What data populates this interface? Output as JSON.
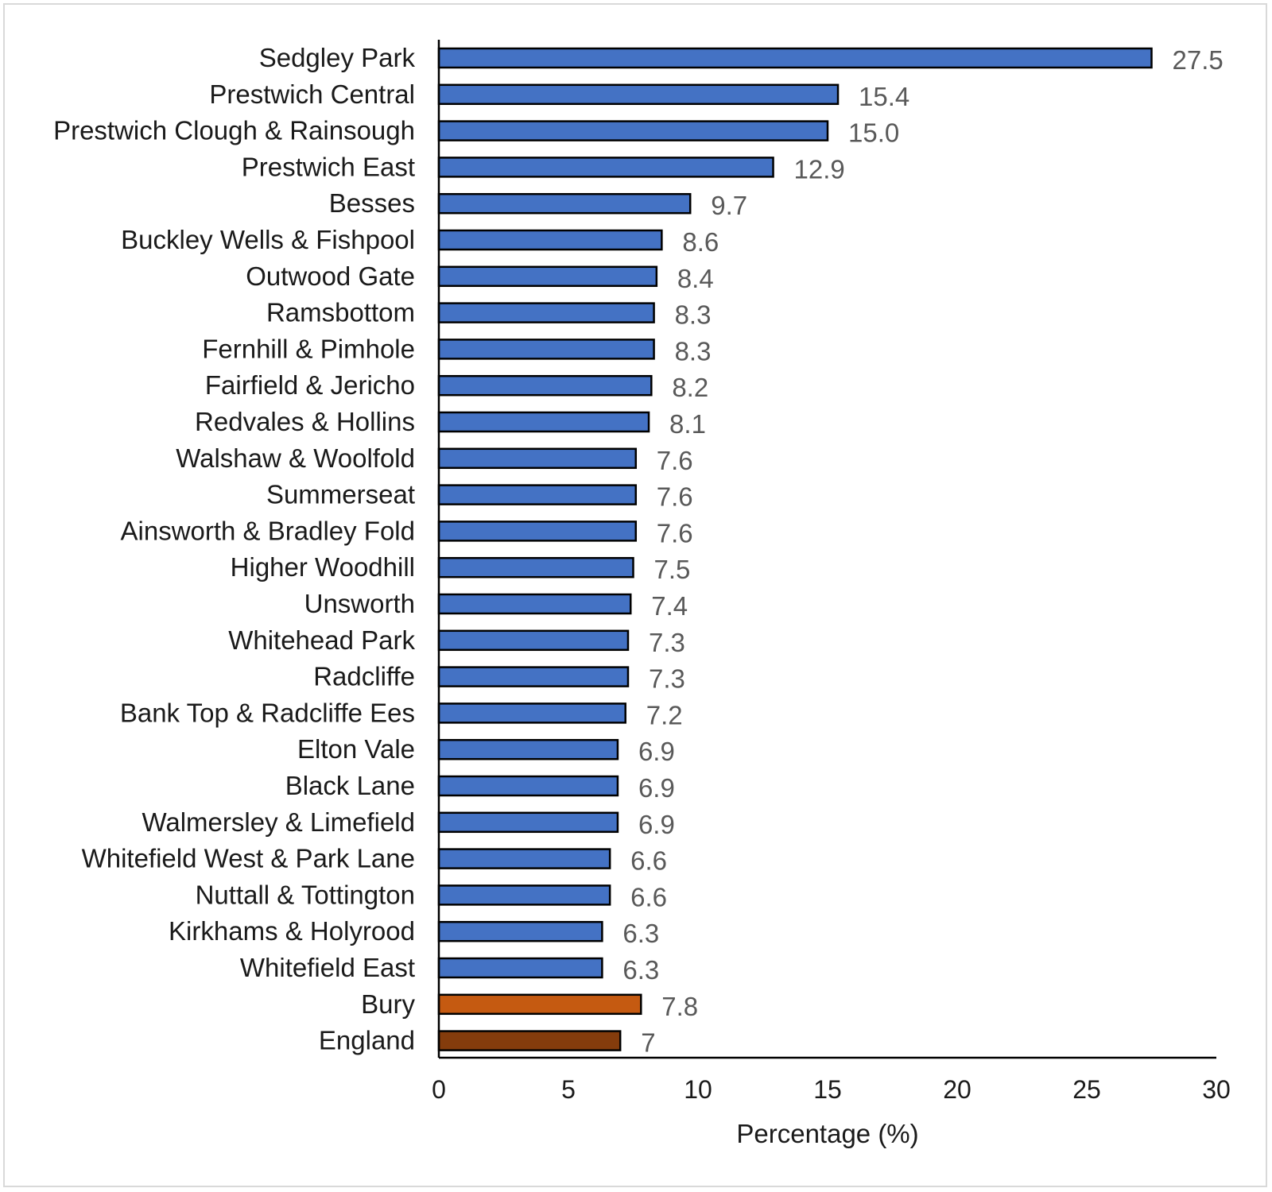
{
  "chart_data": {
    "type": "bar",
    "orientation": "horizontal",
    "title": "",
    "xlabel": "Percentage (%)",
    "ylabel": "",
    "xlim": [
      0,
      30
    ],
    "x_ticks": [
      "0",
      "5",
      "10",
      "15",
      "20",
      "25",
      "30"
    ],
    "grid": false,
    "legend": "none",
    "categories": [
      "Sedgley Park",
      "Prestwich Central",
      "Prestwich Clough & Rainsough",
      "Prestwich East",
      "Besses",
      "Buckley Wells & Fishpool",
      "Outwood Gate",
      "Ramsbottom",
      "Fernhill & Pimhole",
      "Fairfield & Jericho",
      "Redvales & Hollins",
      "Walshaw & Woolfold",
      "Summerseat",
      "Ainsworth & Bradley Fold",
      "Higher Woodhill",
      "Unsworth",
      "Whitehead Park",
      "Radcliffe",
      "Bank Top & Radcliffe Ees",
      "Elton Vale",
      "Black Lane",
      "Walmersley & Limefield",
      "Whitefield West & Park Lane",
      "Nuttall & Tottington",
      "Kirkhams & Holyrood",
      "Whitefield East",
      "Bury",
      "England"
    ],
    "values": [
      27.5,
      15.4,
      15.0,
      12.9,
      9.7,
      8.6,
      8.4,
      8.3,
      8.3,
      8.2,
      8.1,
      7.6,
      7.6,
      7.6,
      7.5,
      7.4,
      7.3,
      7.3,
      7.2,
      6.9,
      6.9,
      6.9,
      6.6,
      6.6,
      6.3,
      6.3,
      7.8,
      7
    ],
    "value_labels": [
      "27.5",
      "15.4",
      "15.0",
      "12.9",
      "9.7",
      "8.6",
      "8.4",
      "8.3",
      "8.3",
      "8.2",
      "8.1",
      "7.6",
      "7.6",
      "7.6",
      "7.5",
      "7.4",
      "7.3",
      "7.3",
      "7.2",
      "6.9",
      "6.9",
      "6.9",
      "6.6",
      "6.6",
      "6.3",
      "6.3",
      "7.8",
      "7"
    ],
    "colors": {
      "ward": "#4472c4",
      "Bury": "#c55a11",
      "England": "#843c0c",
      "bar_outline": "#000000"
    }
  }
}
